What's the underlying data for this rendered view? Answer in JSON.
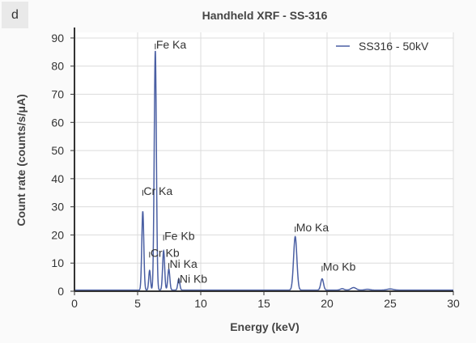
{
  "panel_label": "d",
  "chart_data": {
    "type": "line",
    "title": "Handheld XRF - SS-316",
    "xlabel": "Energy (keV)",
    "ylabel": "Count rate (counts/s/μA)",
    "xlim": [
      0,
      30
    ],
    "ylim": [
      0,
      92
    ],
    "xticks": [
      0,
      5,
      10,
      15,
      20,
      25,
      30
    ],
    "yticks": [
      0,
      10,
      20,
      30,
      40,
      50,
      60,
      70,
      80,
      90
    ],
    "grid": true,
    "legend_position": "top-right",
    "series": [
      {
        "name": "SS316 - 50kV",
        "color": "#4a5fa3",
        "baseline": 0.4,
        "peaks": [
          {
            "x": 5.41,
            "y": 28,
            "width": 0.08
          },
          {
            "x": 5.95,
            "y": 7,
            "width": 0.07
          },
          {
            "x": 6.4,
            "y": 85,
            "width": 0.085
          },
          {
            "x": 7.06,
            "y": 14,
            "width": 0.08
          },
          {
            "x": 7.47,
            "y": 7.5,
            "width": 0.08
          },
          {
            "x": 8.26,
            "y": 4,
            "width": 0.08
          },
          {
            "x": 17.48,
            "y": 19,
            "width": 0.13
          },
          {
            "x": 19.61,
            "y": 4,
            "width": 0.11
          },
          {
            "x": 21.2,
            "y": 0.5,
            "width": 0.15
          },
          {
            "x": 22.1,
            "y": 0.9,
            "width": 0.2
          },
          {
            "x": 23.2,
            "y": 0.3,
            "width": 0.2
          },
          {
            "x": 25.0,
            "y": 0.4,
            "width": 0.25
          }
        ]
      }
    ],
    "annotations": [
      {
        "text": "Fe Ka",
        "x": 6.4,
        "y": 88
      },
      {
        "text": "Cr Ka",
        "x": 5.41,
        "y": 36
      },
      {
        "text": "Fe Kb",
        "x": 7.06,
        "y": 20
      },
      {
        "text": "Cr Kb",
        "x": 5.95,
        "y": 14
      },
      {
        "text": "Ni Ka",
        "x": 7.47,
        "y": 10
      },
      {
        "text": "Ni Kb",
        "x": 8.26,
        "y": 4.8
      },
      {
        "text": "Mo Ka",
        "x": 17.48,
        "y": 23
      },
      {
        "text": "Mo Kb",
        "x": 19.61,
        "y": 9
      }
    ]
  }
}
